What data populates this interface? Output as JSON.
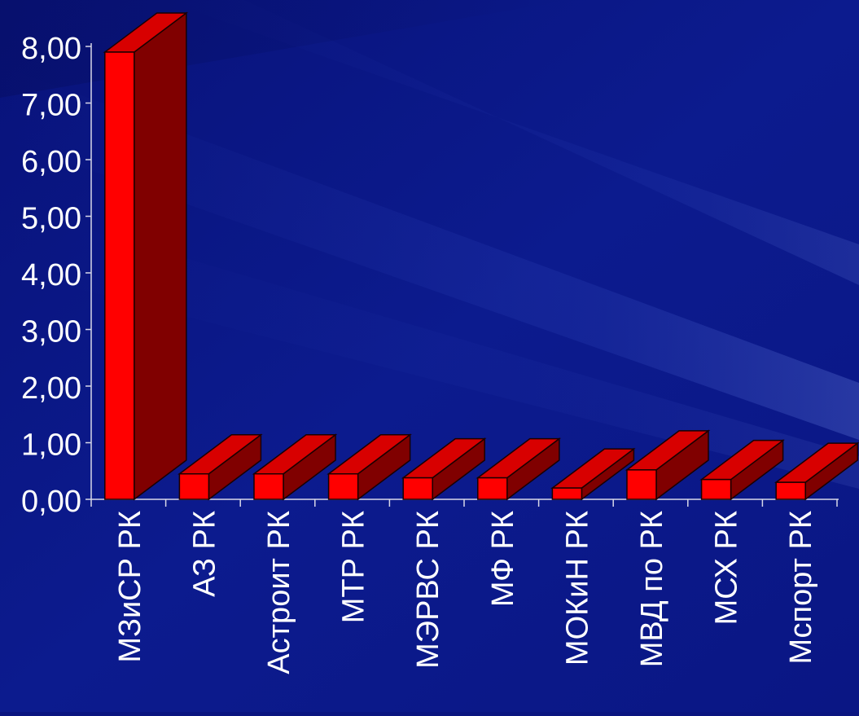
{
  "chart_data": {
    "type": "bar",
    "categories": [
      "МЗиСР РК",
      "АЗ РК",
      "Астроит РК",
      "МТР РК",
      "МЭРВС РК",
      "МФ РК",
      "МОКиН РК",
      "МВД по РК",
      "МСХ РК",
      "Мспорт РК"
    ],
    "values": [
      7.9,
      0.45,
      0.45,
      0.45,
      0.38,
      0.38,
      0.2,
      0.52,
      0.35,
      0.3
    ],
    "yticks": [
      "0,00",
      "1,00",
      "2,00",
      "3,00",
      "4,00",
      "5,00",
      "6,00",
      "7,00",
      "8,00"
    ],
    "ylim": [
      0,
      8
    ],
    "title": "",
    "xlabel": "",
    "ylabel": "",
    "style": "3d",
    "colors": {
      "background": "#0a1580",
      "bar_front": "#ff0000",
      "bar_top": "#d80000",
      "bar_side": "#800000",
      "outline": "#1a0000",
      "axis": "#d8d8e8",
      "text": "#ffffff"
    }
  }
}
